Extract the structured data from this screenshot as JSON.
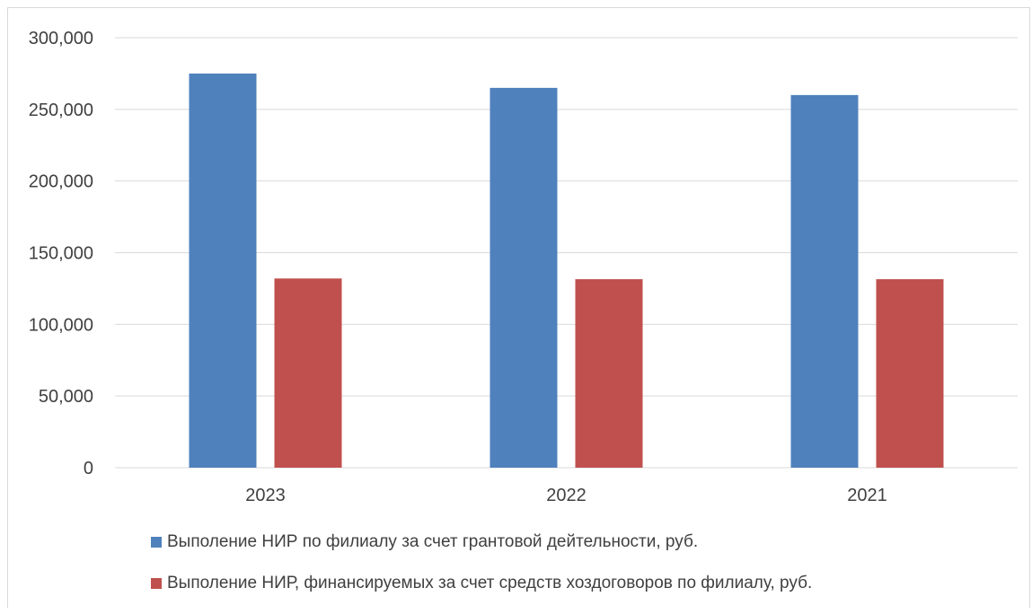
{
  "chart_data": {
    "type": "bar",
    "title": "",
    "xlabel": "",
    "ylabel": "",
    "categories": [
      "2023",
      "2022",
      "2021"
    ],
    "ylim": [
      0,
      300000
    ],
    "ytick_values": [
      0,
      50000,
      100000,
      150000,
      200000,
      250000,
      300000
    ],
    "ytick_labels": [
      "0",
      "50,000",
      "100,000",
      "150,000",
      "200,000",
      "250,000",
      "300,000"
    ],
    "grid": true,
    "legend_position": "bottom",
    "series": [
      {
        "name": "Выполение НИР по филиалу за счет грантовой дейтельности, руб.",
        "color": "#4f81bd",
        "values": [
          275000,
          265000,
          260000
        ]
      },
      {
        "name": "Выполение НИР, финансируемых за счет средств хоздоговоров по филиалу, руб.",
        "color": "#c0504d",
        "values": [
          132000,
          131500,
          131500
        ]
      }
    ]
  }
}
